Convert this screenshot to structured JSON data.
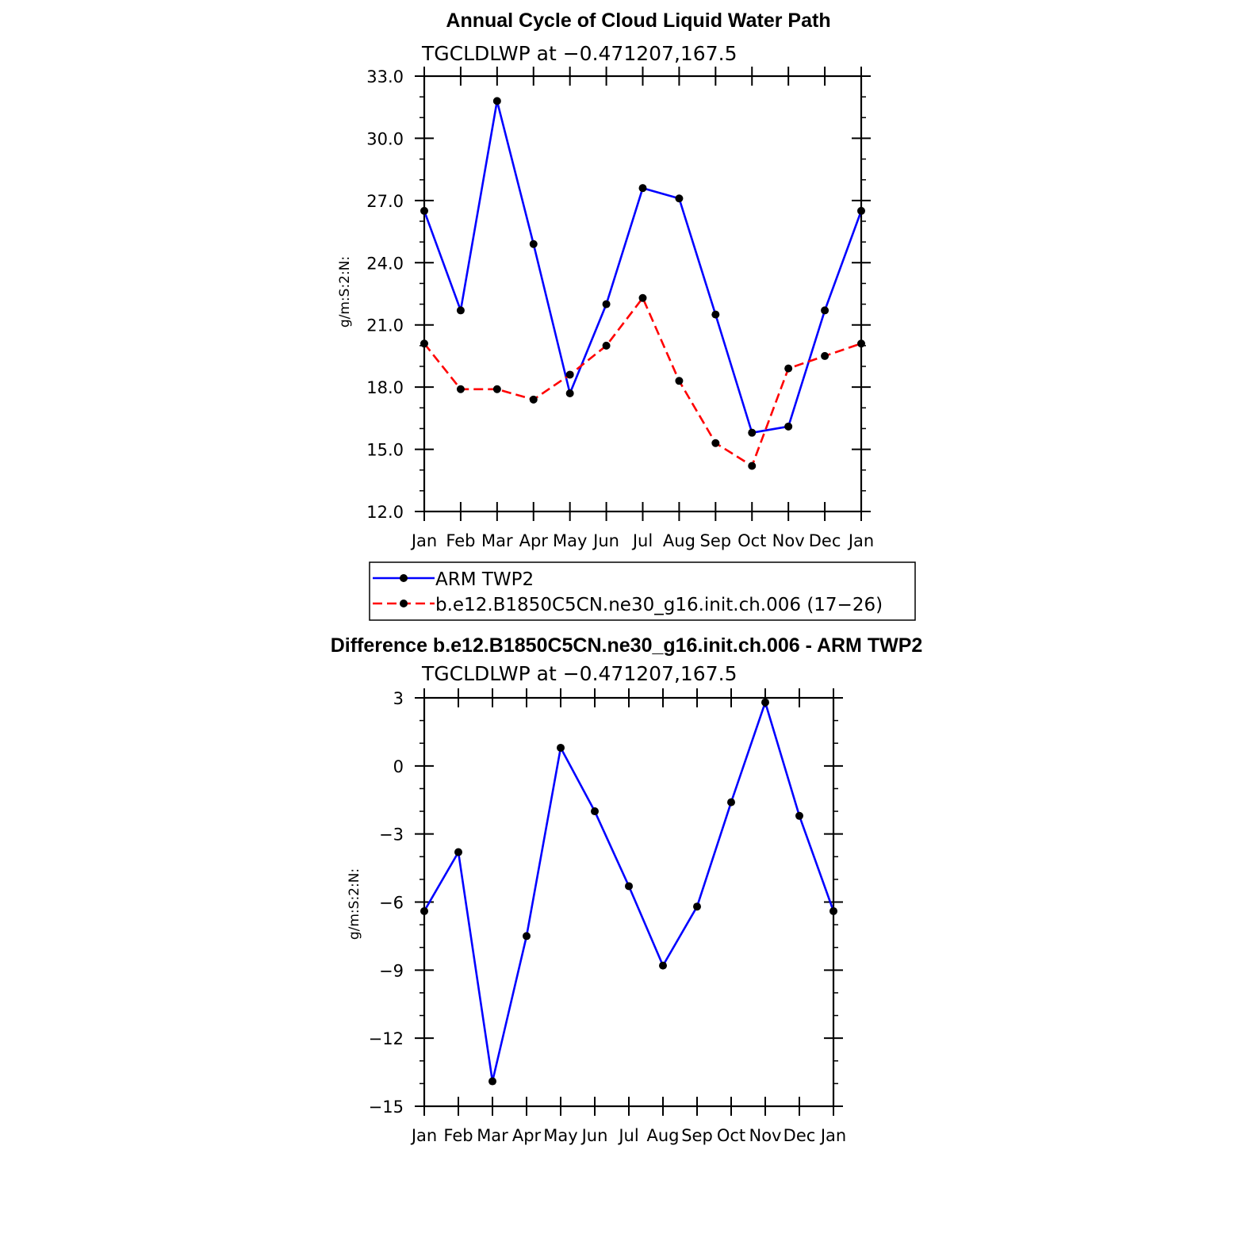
{
  "chart_data": [
    {
      "type": "line",
      "title": "Annual Cycle of Cloud Liquid Water Path",
      "subtitle": "TGCLDLWP  at  −0.471207,167.5",
      "ylabel": "g/m:S:2:N:",
      "ylim": [
        12.0,
        33.0
      ],
      "yticks": [
        "12.0",
        "15.0",
        "18.0",
        "21.0",
        "24.0",
        "27.0",
        "30.0",
        "33.0"
      ],
      "categories": [
        "Jan",
        "Feb",
        "Mar",
        "Apr",
        "May",
        "Jun",
        "Jul",
        "Aug",
        "Sep",
        "Oct",
        "Nov",
        "Dec",
        "Jan"
      ],
      "series": [
        {
          "name": "ARM TWP2",
          "color": "#0000ff",
          "dash": "solid",
          "values": [
            26.5,
            21.7,
            31.8,
            24.9,
            17.7,
            22.0,
            27.6,
            27.1,
            21.5,
            15.8,
            16.1,
            21.7,
            26.5
          ]
        },
        {
          "name": "b.e12.B1850C5CN.ne30_g16.init.ch.006 (17−26)",
          "color": "#ff0000",
          "dash": "dashed",
          "values": [
            20.1,
            17.9,
            17.9,
            17.4,
            18.6,
            20.0,
            22.3,
            18.3,
            15.3,
            14.2,
            18.9,
            19.5,
            20.1
          ]
        }
      ]
    },
    {
      "type": "line",
      "title": "Difference b.e12.B1850C5CN.ne30_g16.init.ch.006 - ARM TWP2",
      "subtitle": "TGCLDLWP  at  −0.471207,167.5",
      "ylabel": "g/m:S:2:N:",
      "ylim": [
        -15,
        3
      ],
      "yticks": [
        "−15",
        "−12",
        "−9",
        "−6",
        "−3",
        "0",
        "3"
      ],
      "categories": [
        "Jan",
        "Feb",
        "Mar",
        "Apr",
        "May",
        "Jun",
        "Jul",
        "Aug",
        "Sep",
        "Oct",
        "Nov",
        "Dec",
        "Jan"
      ],
      "series": [
        {
          "color": "#0000ff",
          "dash": "solid",
          "values": [
            -6.4,
            -3.8,
            -13.9,
            -7.5,
            0.8,
            -2.0,
            -5.3,
            -8.8,
            -6.2,
            -1.6,
            2.8,
            -2.2,
            -6.4
          ]
        }
      ]
    }
  ]
}
